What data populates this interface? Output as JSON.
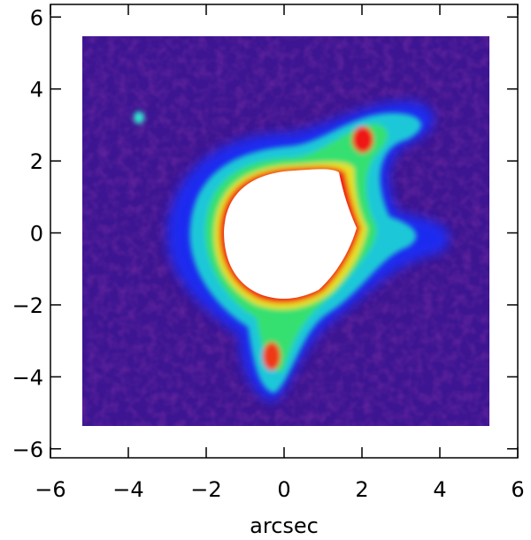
{
  "chart_data": {
    "type": "image",
    "xlabel": "arcsec",
    "xlim": [
      -6,
      6
    ],
    "ylim": [
      -6.25,
      6.35
    ],
    "xticks": [
      {
        "value": -6,
        "label": "−6"
      },
      {
        "value": -4,
        "label": "−4"
      },
      {
        "value": -2,
        "label": "−2"
      },
      0,
      2,
      4,
      6
    ],
    "yticks": [
      {
        "value": -6,
        "label": "−6"
      },
      {
        "value": -4,
        "label": "−4"
      },
      {
        "value": -2,
        "label": "−2"
      },
      0,
      2,
      4,
      6
    ]
  }
}
